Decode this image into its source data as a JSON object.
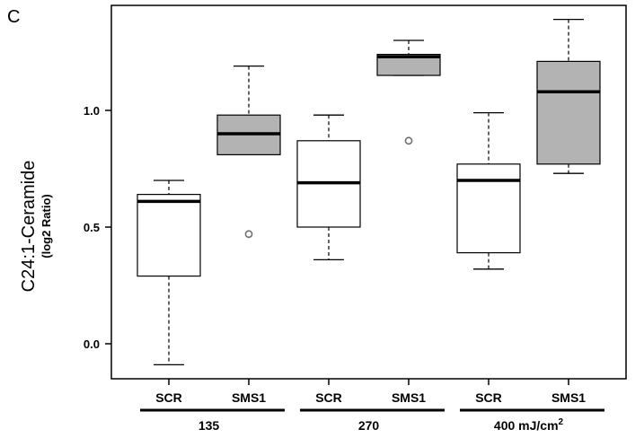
{
  "panel_label": "C",
  "chart_data": {
    "type": "box",
    "ylabel": "C24:1-Ceramide",
    "ylabel_sub": "(log2 Ratio)",
    "ylim": [
      -0.15,
      1.45
    ],
    "yticks": [
      0.0,
      0.5,
      1.0
    ],
    "ytick_labels": [
      "0.0",
      "0.5",
      "1.0"
    ],
    "categories": [
      "SCR",
      "SMS1",
      "SCR",
      "SMS1",
      "SCR",
      "SMS1"
    ],
    "groups": [
      {
        "label": "135",
        "label_sup": "",
        "members": [
          0,
          1
        ]
      },
      {
        "label": "270",
        "label_sup": "",
        "members": [
          2,
          3
        ]
      },
      {
        "label": "400 mJ/cm",
        "label_sup": "2",
        "members": [
          4,
          5
        ]
      }
    ],
    "colors": {
      "SCR": "#ffffff",
      "SMS1": "#b3b3b3"
    },
    "boxes": [
      {
        "category": "SCR",
        "whisker_low": -0.09,
        "q1": 0.29,
        "median": 0.61,
        "q3": 0.64,
        "whisker_high": 0.7,
        "outliers": []
      },
      {
        "category": "SMS1",
        "whisker_low": 0.81,
        "q1": 0.81,
        "median": 0.9,
        "q3": 0.98,
        "whisker_high": 1.19,
        "outliers": [
          0.47
        ]
      },
      {
        "category": "SCR",
        "whisker_low": 0.36,
        "q1": 0.5,
        "median": 0.69,
        "q3": 0.87,
        "whisker_high": 0.98,
        "outliers": []
      },
      {
        "category": "SMS1",
        "whisker_low": 1.15,
        "q1": 1.15,
        "median": 1.23,
        "q3": 1.24,
        "whisker_high": 1.3,
        "outliers": [
          0.87
        ]
      },
      {
        "category": "SCR",
        "whisker_low": 0.32,
        "q1": 0.39,
        "median": 0.7,
        "q3": 0.77,
        "whisker_high": 0.99,
        "outliers": []
      },
      {
        "category": "SMS1",
        "whisker_low": 0.73,
        "q1": 0.77,
        "median": 1.08,
        "q3": 1.21,
        "whisker_high": 1.39,
        "outliers": []
      }
    ]
  }
}
